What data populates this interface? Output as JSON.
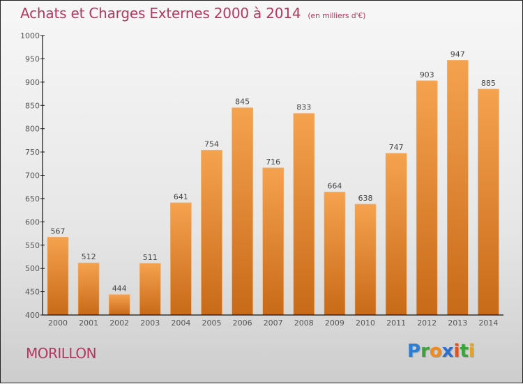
{
  "title": {
    "main": "Achats et Charges Externes 2000 à 2014",
    "unit": "(en milliers d'€)"
  },
  "commune": "MORILLON",
  "logo": {
    "letters": [
      {
        "char": "P",
        "color": "#2a7fd4"
      },
      {
        "char": "r",
        "color": "#3aa33a"
      },
      {
        "char": "o",
        "color": "#f08a1c"
      },
      {
        "char": "x",
        "color": "#2a6fd0"
      },
      {
        "char": "i",
        "color": "#e84d1c"
      },
      {
        "char": "t",
        "color": "#3aa33a"
      },
      {
        "char": "i",
        "color": "#e8a21c"
      }
    ]
  },
  "colors": {
    "title": "#b5365e",
    "bar_top": "#f5a24f",
    "bar_bottom": "#c86a18"
  },
  "chart_data": {
    "type": "bar",
    "title": "Achats et Charges Externes 2000 à 2014 (en milliers d'€)",
    "xlabel": "",
    "ylabel": "",
    "categories": [
      "2000",
      "2001",
      "2002",
      "2003",
      "2004",
      "2005",
      "2006",
      "2007",
      "2008",
      "2009",
      "2010",
      "2011",
      "2012",
      "2013",
      "2014"
    ],
    "values": [
      567,
      512,
      444,
      511,
      641,
      754,
      845,
      716,
      833,
      664,
      638,
      747,
      903,
      947,
      885
    ],
    "ylim": [
      400,
      1000
    ],
    "yticks": [
      400,
      450,
      500,
      550,
      600,
      650,
      700,
      750,
      800,
      850,
      900,
      950,
      1000
    ],
    "grid": false,
    "legend": "none"
  }
}
